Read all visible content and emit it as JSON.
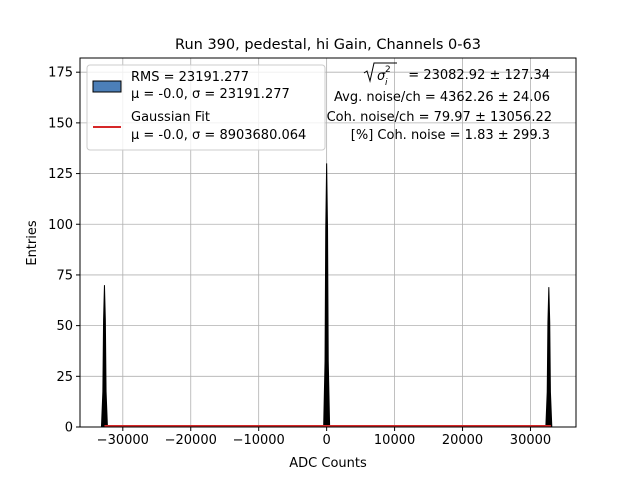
{
  "chart_data": {
    "type": "histogram",
    "title": "Run 390, pedestal, hi Gain, Channels 0-63",
    "xlabel": "ADC Counts",
    "ylabel": "Entries",
    "xlim": [
      -36300,
      36700
    ],
    "ylim": [
      0,
      182
    ],
    "xticks": [
      -30000,
      -20000,
      -10000,
      0,
      10000,
      20000,
      30000
    ],
    "xtick_labels": [
      "−30000",
      "−20000",
      "−10000",
      "0",
      "10000",
      "20000",
      "30000"
    ],
    "yticks": [
      0,
      25,
      50,
      75,
      100,
      125,
      150,
      175
    ],
    "ytick_labels": [
      "0",
      "25",
      "50",
      "75",
      "100",
      "125",
      "150",
      "175"
    ],
    "grid": true,
    "legend_position": "top-left",
    "series": [
      {
        "name": "RMS = 23191.277",
        "name_line2": "μ = -0.0, σ = 23191.277",
        "kind": "histogram",
        "fill_color": "#4c7fb8",
        "edge_color": "#000000",
        "peaks": [
          {
            "center": -32700,
            "height": 70
          },
          {
            "center": 0,
            "height": 130
          },
          {
            "center": 32700,
            "height": 69
          }
        ]
      },
      {
        "name": "Gaussian Fit",
        "name_line2": "μ = -0.0, σ = 8903680.064",
        "kind": "line",
        "color": "#d62728",
        "x": [
          -32700,
          33000
        ],
        "y": [
          0,
          0
        ]
      }
    ],
    "annotations": {
      "coherent_sigma_label": "= 23082.92 ± 127.34",
      "avg_noise": "Avg. noise/ch = 4362.26 ± 24.06",
      "coh_noise": "Coh. noise/ch = 79.97 ± 13056.22",
      "pct_coh_noise": "[%] Coh. noise = 1.83 ± 299.3"
    }
  }
}
